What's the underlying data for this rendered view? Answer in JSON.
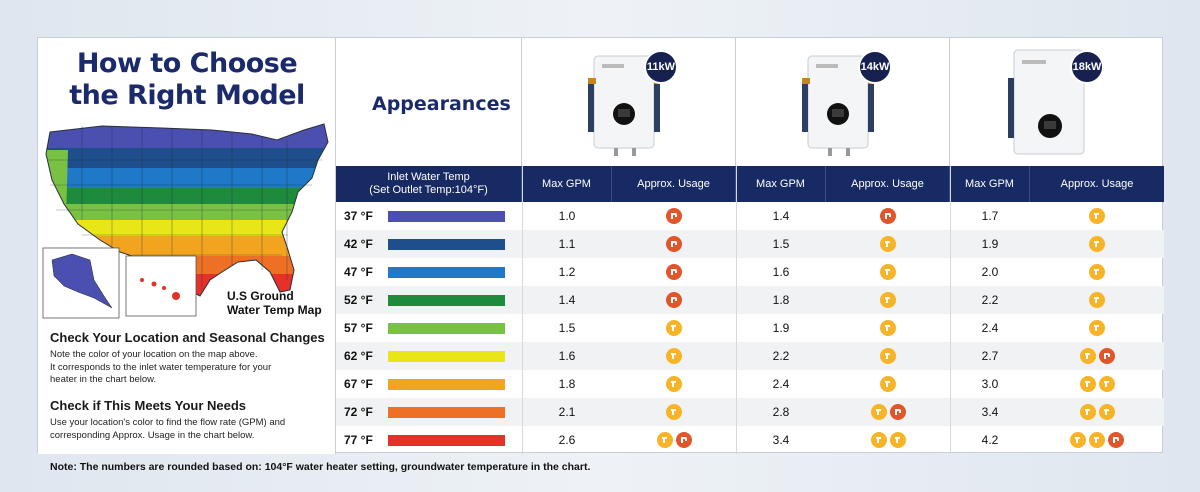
{
  "title": {
    "line1": "How to Choose",
    "line2": "the Right Model"
  },
  "map": {
    "label_line1": "U.S Ground",
    "label_line2": "Water Temp Map"
  },
  "check1": {
    "heading": "Check Your Location and Seasonal Changes",
    "text1": "Note the color of your location on the map above.",
    "text2": "It corresponds to the inlet water temperature for your",
    "text3": "heater in the chart below."
  },
  "check2": {
    "heading": "Check if This Meets Your Needs",
    "text1": "Use your location's color to find the flow rate (GPM) and",
    "text2": "corresponding Approx. Usage in the chart below."
  },
  "appearances": "Appearances",
  "models": [
    {
      "badge": "11kW"
    },
    {
      "badge": "14kW"
    },
    {
      "badge": "18kW"
    }
  ],
  "header": {
    "inlet_line1": "Inlet Water Temp",
    "inlet_line2": "(Set Outlet Temp:104°F)",
    "max_gpm": "Max GPM",
    "usage": "Approx. Usage"
  },
  "rows": [
    {
      "temp": "37 °F",
      "color": "#4a4fb0",
      "gpm": [
        "1.0",
        "1.4",
        "1.7"
      ],
      "usage": [
        [
          "shower"
        ],
        [
          "shower"
        ],
        [
          "tap"
        ]
      ]
    },
    {
      "temp": "42 °F",
      "color": "#1f4e8c",
      "gpm": [
        "1.1",
        "1.5",
        "1.9"
      ],
      "usage": [
        [
          "shower"
        ],
        [
          "tap"
        ],
        [
          "tap"
        ]
      ]
    },
    {
      "temp": "47 °F",
      "color": "#1f78c8",
      "gpm": [
        "1.2",
        "1.6",
        "2.0"
      ],
      "usage": [
        [
          "shower"
        ],
        [
          "tap"
        ],
        [
          "tap"
        ]
      ]
    },
    {
      "temp": "52 °F",
      "color": "#1e8a3c",
      "gpm": [
        "1.4",
        "1.8",
        "2.2"
      ],
      "usage": [
        [
          "shower"
        ],
        [
          "tap"
        ],
        [
          "tap"
        ]
      ]
    },
    {
      "temp": "57 °F",
      "color": "#79c143",
      "gpm": [
        "1.5",
        "1.9",
        "2.4"
      ],
      "usage": [
        [
          "tap"
        ],
        [
          "tap"
        ],
        [
          "tap"
        ]
      ]
    },
    {
      "temp": "62 °F",
      "color": "#e8e617",
      "gpm": [
        "1.6",
        "2.2",
        "2.7"
      ],
      "usage": [
        [
          "tap"
        ],
        [
          "tap"
        ],
        [
          "tap",
          "shower"
        ]
      ]
    },
    {
      "temp": "67 °F",
      "color": "#f3a41f",
      "gpm": [
        "1.8",
        "2.4",
        "3.0"
      ],
      "usage": [
        [
          "tap"
        ],
        [
          "tap"
        ],
        [
          "tap",
          "tap"
        ]
      ]
    },
    {
      "temp": "72 °F",
      "color": "#ee7024",
      "gpm": [
        "2.1",
        "2.8",
        "3.4"
      ],
      "usage": [
        [
          "tap"
        ],
        [
          "tap",
          "shower"
        ],
        [
          "tap",
          "tap"
        ]
      ]
    },
    {
      "temp": "77 °F",
      "color": "#e5312a",
      "gpm": [
        "2.6",
        "3.4",
        "4.2"
      ],
      "usage": [
        [
          "tap",
          "shower"
        ],
        [
          "tap",
          "tap"
        ],
        [
          "tap",
          "tap",
          "shower"
        ]
      ]
    }
  ],
  "note": "Note: The numbers are rounded based on: 104°F water heater setting, groundwater temperature in the chart.",
  "colors": {
    "navy": "#182a63",
    "tap": "#f7b427",
    "shower": "#e1552b"
  },
  "icons": {
    "tap": "faucet-icon",
    "shower": "shower-icon"
  }
}
